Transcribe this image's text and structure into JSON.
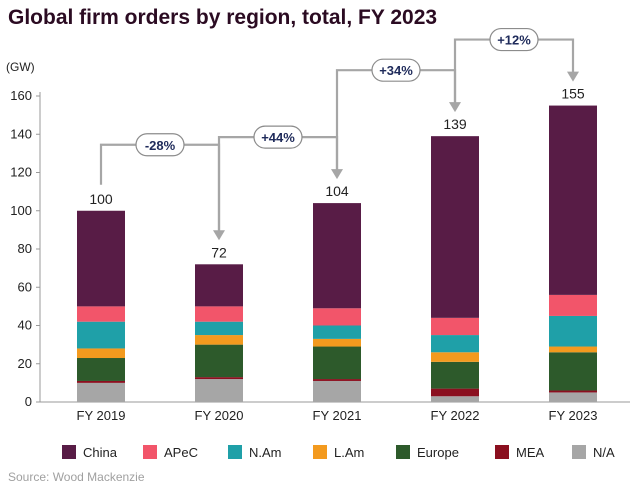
{
  "title": "Global firm orders by region, total, FY 2023",
  "source": "Source: Wood Mackenzie",
  "chart_data": {
    "type": "bar",
    "stacked": true,
    "title": "Global firm orders by region, total, FY 2023",
    "ylabel": "(GW)",
    "xlabel": "",
    "ylim": [
      0,
      160
    ],
    "yticks": [
      0,
      20,
      40,
      60,
      80,
      100,
      120,
      140,
      160
    ],
    "grid": false,
    "legend_position": "bottom",
    "categories": [
      "FY 2019",
      "FY 2020",
      "FY 2021",
      "FY 2022",
      "FY 2023"
    ],
    "totals": [
      100,
      72,
      104,
      139,
      155
    ],
    "series": [
      {
        "name": "N/A",
        "color": "#a6a6a6",
        "values": [
          10,
          12,
          11,
          3,
          5
        ]
      },
      {
        "name": "MEA",
        "color": "#8b0f1f",
        "values": [
          1,
          1,
          1,
          4,
          1
        ]
      },
      {
        "name": "Europe",
        "color": "#2d5a2b",
        "values": [
          12,
          17,
          17,
          14,
          20
        ]
      },
      {
        "name": "L.Am",
        "color": "#f39a1e",
        "values": [
          5,
          5,
          4,
          5,
          3
        ]
      },
      {
        "name": "N.Am",
        "color": "#1fa0a8",
        "values": [
          14,
          7,
          7,
          9,
          16
        ]
      },
      {
        "name": "APeC",
        "color": "#f2556a",
        "values": [
          8,
          8,
          9,
          9,
          11
        ]
      },
      {
        "name": "China",
        "color": "#581c46",
        "values": [
          50,
          22,
          55,
          95,
          99
        ]
      }
    ],
    "legend_order": [
      "China",
      "APeC",
      "N.Am",
      "L.Am",
      "Europe",
      "MEA",
      "N/A"
    ],
    "annotations": [
      "-28%",
      "+44%",
      "+34%",
      "+12%"
    ]
  }
}
